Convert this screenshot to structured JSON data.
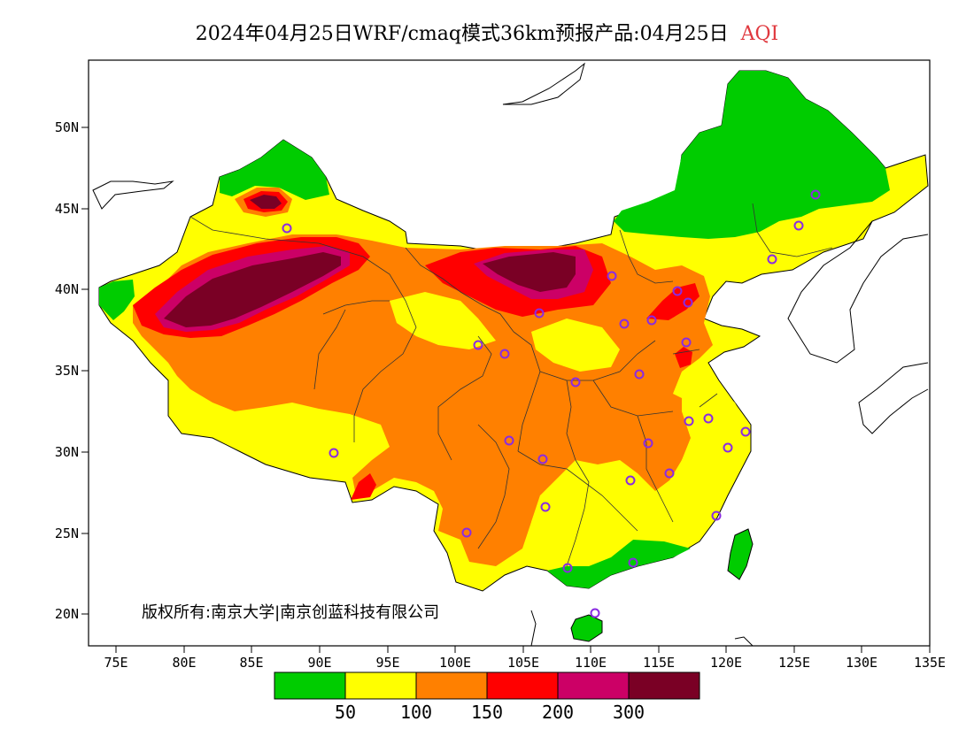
{
  "title": {
    "main": "2024年04月25日WRF/cmaq模式36km预报产品:04月25日",
    "variable": "AQI"
  },
  "copyright": "版权所有:南京大学|南京创蓝科技有限公司",
  "map": {
    "lon_range": [
      73,
      135
    ],
    "lat_range": [
      18,
      54
    ]
  },
  "axes": {
    "lat_ticks": [
      "50N",
      "45N",
      "40N",
      "35N",
      "30N",
      "25N",
      "20N"
    ],
    "lon_ticks": [
      "75E",
      "80E",
      "85E",
      "90E",
      "95E",
      "100E",
      "105E",
      "110E",
      "115E",
      "120E",
      "125E",
      "130E",
      "135E"
    ]
  },
  "legend": {
    "colors": [
      "#00cc00",
      "#ffff00",
      "#ff8000",
      "#ff0000",
      "#cc0066",
      "#7a0025"
    ],
    "labels": [
      "50",
      "100",
      "150",
      "200",
      "300"
    ]
  }
}
